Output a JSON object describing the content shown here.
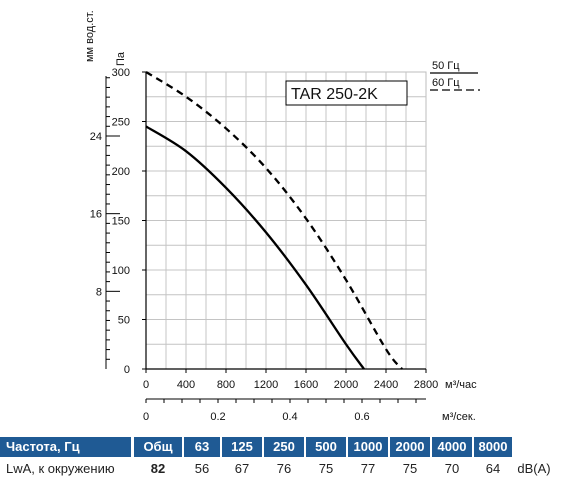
{
  "chart_data": {
    "type": "line",
    "title": "TAR 250-2K",
    "left_axis_label": "мм вод.ст.",
    "y_label": "Па",
    "x_label": "м³/час",
    "x2_label": "м³/сек.",
    "ylim": [
      0,
      300
    ],
    "xlim": [
      0,
      2800
    ],
    "y_ticks": [
      0,
      50,
      100,
      150,
      200,
      250,
      300
    ],
    "x_ticks": [
      0,
      400,
      800,
      1200,
      1600,
      2000,
      2400,
      2800
    ],
    "x2_ticks": [
      "0",
      "0.2",
      "0.4",
      "0.6"
    ],
    "x2_values": [
      0,
      0.2,
      0.4,
      0.6
    ],
    "mm_ticks": [
      "8",
      "16",
      "24"
    ],
    "mm_values": [
      8,
      16,
      24
    ],
    "legend": [
      "50 Гц",
      "60 Гц"
    ],
    "series": [
      {
        "name": "50 Гц",
        "style": "solid",
        "color": "#000000",
        "x": [
          0,
          400,
          800,
          1200,
          1600,
          2000,
          2180
        ],
        "y": [
          245,
          220,
          183,
          138,
          85,
          25,
          0
        ]
      },
      {
        "name": "60 Гц",
        "style": "dashed",
        "color": "#000000",
        "x": [
          0,
          400,
          800,
          1200,
          1600,
          2000,
          2400,
          2560
        ],
        "y": [
          300,
          275,
          243,
          203,
          152,
          90,
          20,
          0
        ]
      }
    ],
    "grid": true
  },
  "table": {
    "header_label": "Частота, Гц",
    "headers": [
      "Общ",
      "63",
      "125",
      "250",
      "500",
      "1000",
      "2000",
      "4000",
      "8000"
    ],
    "row_label": "LwA, к окружению",
    "values": [
      "82",
      "56",
      "67",
      "76",
      "75",
      "77",
      "75",
      "70",
      "64"
    ],
    "unit": "dB(A)",
    "header_color": "#1f5a94"
  }
}
